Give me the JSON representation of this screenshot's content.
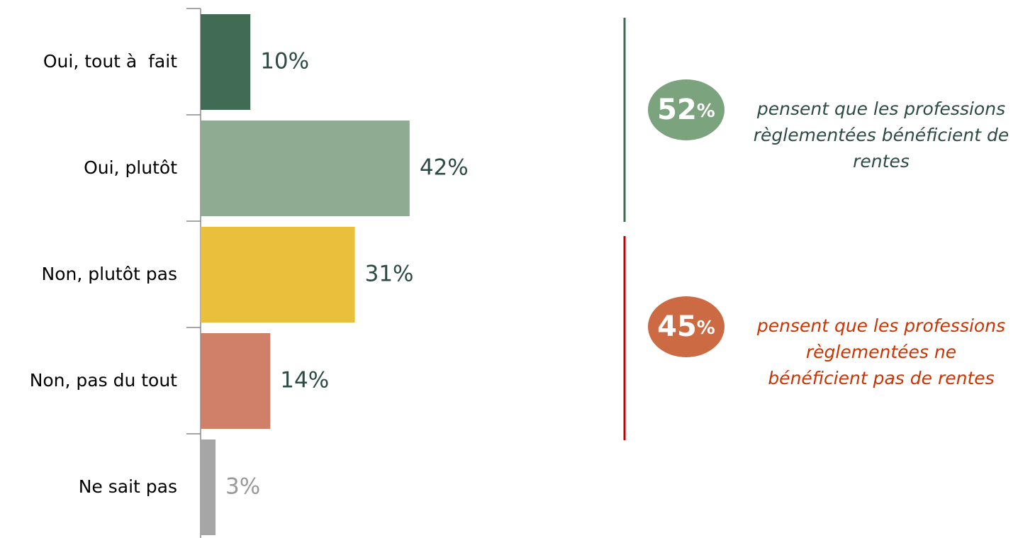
{
  "chart_data": {
    "type": "hbar",
    "categories": [
      "Oui, tout à  fait",
      "Oui, plutôt",
      "Non, plutôt pas",
      "Non, pas du tout",
      "Ne sait pas"
    ],
    "values": [
      10,
      42,
      31,
      14,
      3
    ],
    "value_labels": [
      "10%",
      "42%",
      "31%",
      "14%",
      "3%"
    ],
    "colors": [
      "#426b55",
      "#8fac93",
      "#e9bf3b",
      "#d07f68",
      "#a6a6a6"
    ],
    "label_colors": [
      "#2d4a45",
      "#2d4a45",
      "#2d4a45",
      "#2d4a45",
      "#999999"
    ],
    "callouts": [
      {
        "number": 52,
        "unit": "%",
        "color": "#7ba37d",
        "line_color": "#426b55",
        "text_color": "#2d4a45",
        "lines": [
          "pensent que les professions",
          "règlementées bénéficient de",
          "rentes"
        ]
      },
      {
        "number": 45,
        "unit": "%",
        "color": "#cc6a44",
        "line_color": "#c00000",
        "text_color": "#cc3300",
        "lines": [
          "pensent que les professions",
          "règlementées ne",
          "bénéficient pas de rentes"
        ]
      }
    ]
  }
}
